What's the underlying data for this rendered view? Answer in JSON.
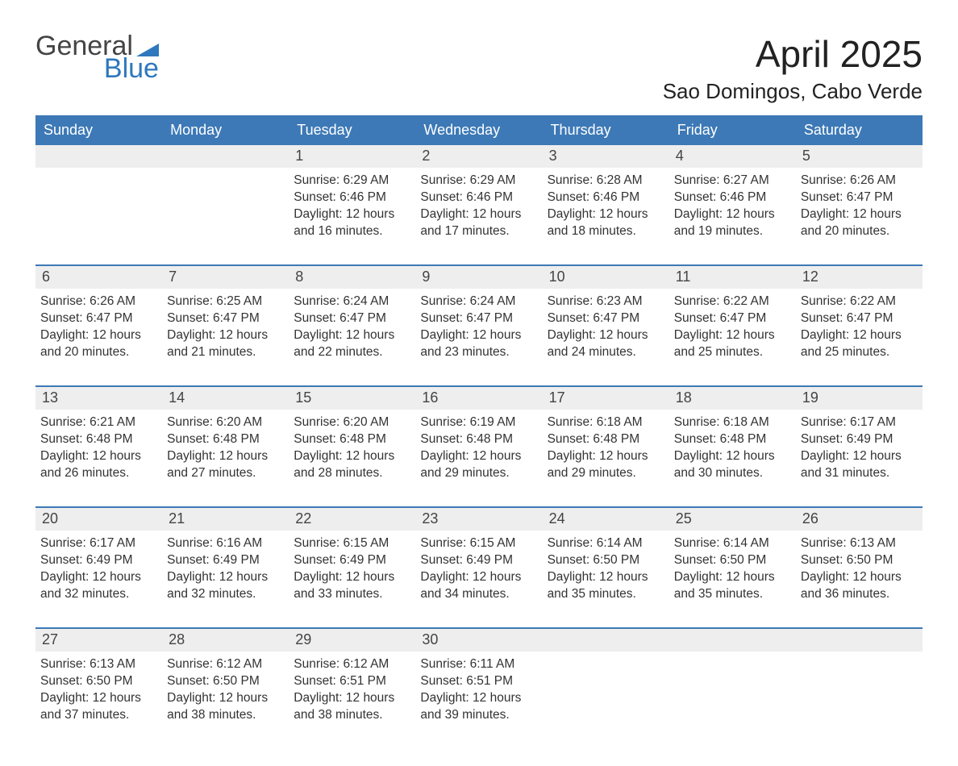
{
  "logo": {
    "text_general": "General",
    "text_blue": "Blue",
    "icon_color": "#2f78bd"
  },
  "title": "April 2025",
  "location": "Sao Domingos, Cabo Verde",
  "colors": {
    "header_bg": "#3d79b6",
    "header_text": "#ffffff",
    "daynum_bg": "#eeeeee",
    "week_border": "#3d79b6",
    "text": "#333333",
    "background": "#ffffff"
  },
  "days_of_week": [
    "Sunday",
    "Monday",
    "Tuesday",
    "Wednesday",
    "Thursday",
    "Friday",
    "Saturday"
  ],
  "weeks": [
    [
      {
        "day": "",
        "sunrise": "",
        "sunset": "",
        "daylight": ""
      },
      {
        "day": "",
        "sunrise": "",
        "sunset": "",
        "daylight": ""
      },
      {
        "day": "1",
        "sunrise": "Sunrise: 6:29 AM",
        "sunset": "Sunset: 6:46 PM",
        "daylight": "Daylight: 12 hours and 16 minutes."
      },
      {
        "day": "2",
        "sunrise": "Sunrise: 6:29 AM",
        "sunset": "Sunset: 6:46 PM",
        "daylight": "Daylight: 12 hours and 17 minutes."
      },
      {
        "day": "3",
        "sunrise": "Sunrise: 6:28 AM",
        "sunset": "Sunset: 6:46 PM",
        "daylight": "Daylight: 12 hours and 18 minutes."
      },
      {
        "day": "4",
        "sunrise": "Sunrise: 6:27 AM",
        "sunset": "Sunset: 6:46 PM",
        "daylight": "Daylight: 12 hours and 19 minutes."
      },
      {
        "day": "5",
        "sunrise": "Sunrise: 6:26 AM",
        "sunset": "Sunset: 6:47 PM",
        "daylight": "Daylight: 12 hours and 20 minutes."
      }
    ],
    [
      {
        "day": "6",
        "sunrise": "Sunrise: 6:26 AM",
        "sunset": "Sunset: 6:47 PM",
        "daylight": "Daylight: 12 hours and 20 minutes."
      },
      {
        "day": "7",
        "sunrise": "Sunrise: 6:25 AM",
        "sunset": "Sunset: 6:47 PM",
        "daylight": "Daylight: 12 hours and 21 minutes."
      },
      {
        "day": "8",
        "sunrise": "Sunrise: 6:24 AM",
        "sunset": "Sunset: 6:47 PM",
        "daylight": "Daylight: 12 hours and 22 minutes."
      },
      {
        "day": "9",
        "sunrise": "Sunrise: 6:24 AM",
        "sunset": "Sunset: 6:47 PM",
        "daylight": "Daylight: 12 hours and 23 minutes."
      },
      {
        "day": "10",
        "sunrise": "Sunrise: 6:23 AM",
        "sunset": "Sunset: 6:47 PM",
        "daylight": "Daylight: 12 hours and 24 minutes."
      },
      {
        "day": "11",
        "sunrise": "Sunrise: 6:22 AM",
        "sunset": "Sunset: 6:47 PM",
        "daylight": "Daylight: 12 hours and 25 minutes."
      },
      {
        "day": "12",
        "sunrise": "Sunrise: 6:22 AM",
        "sunset": "Sunset: 6:47 PM",
        "daylight": "Daylight: 12 hours and 25 minutes."
      }
    ],
    [
      {
        "day": "13",
        "sunrise": "Sunrise: 6:21 AM",
        "sunset": "Sunset: 6:48 PM",
        "daylight": "Daylight: 12 hours and 26 minutes."
      },
      {
        "day": "14",
        "sunrise": "Sunrise: 6:20 AM",
        "sunset": "Sunset: 6:48 PM",
        "daylight": "Daylight: 12 hours and 27 minutes."
      },
      {
        "day": "15",
        "sunrise": "Sunrise: 6:20 AM",
        "sunset": "Sunset: 6:48 PM",
        "daylight": "Daylight: 12 hours and 28 minutes."
      },
      {
        "day": "16",
        "sunrise": "Sunrise: 6:19 AM",
        "sunset": "Sunset: 6:48 PM",
        "daylight": "Daylight: 12 hours and 29 minutes."
      },
      {
        "day": "17",
        "sunrise": "Sunrise: 6:18 AM",
        "sunset": "Sunset: 6:48 PM",
        "daylight": "Daylight: 12 hours and 29 minutes."
      },
      {
        "day": "18",
        "sunrise": "Sunrise: 6:18 AM",
        "sunset": "Sunset: 6:48 PM",
        "daylight": "Daylight: 12 hours and 30 minutes."
      },
      {
        "day": "19",
        "sunrise": "Sunrise: 6:17 AM",
        "sunset": "Sunset: 6:49 PM",
        "daylight": "Daylight: 12 hours and 31 minutes."
      }
    ],
    [
      {
        "day": "20",
        "sunrise": "Sunrise: 6:17 AM",
        "sunset": "Sunset: 6:49 PM",
        "daylight": "Daylight: 12 hours and 32 minutes."
      },
      {
        "day": "21",
        "sunrise": "Sunrise: 6:16 AM",
        "sunset": "Sunset: 6:49 PM",
        "daylight": "Daylight: 12 hours and 32 minutes."
      },
      {
        "day": "22",
        "sunrise": "Sunrise: 6:15 AM",
        "sunset": "Sunset: 6:49 PM",
        "daylight": "Daylight: 12 hours and 33 minutes."
      },
      {
        "day": "23",
        "sunrise": "Sunrise: 6:15 AM",
        "sunset": "Sunset: 6:49 PM",
        "daylight": "Daylight: 12 hours and 34 minutes."
      },
      {
        "day": "24",
        "sunrise": "Sunrise: 6:14 AM",
        "sunset": "Sunset: 6:50 PM",
        "daylight": "Daylight: 12 hours and 35 minutes."
      },
      {
        "day": "25",
        "sunrise": "Sunrise: 6:14 AM",
        "sunset": "Sunset: 6:50 PM",
        "daylight": "Daylight: 12 hours and 35 minutes."
      },
      {
        "day": "26",
        "sunrise": "Sunrise: 6:13 AM",
        "sunset": "Sunset: 6:50 PM",
        "daylight": "Daylight: 12 hours and 36 minutes."
      }
    ],
    [
      {
        "day": "27",
        "sunrise": "Sunrise: 6:13 AM",
        "sunset": "Sunset: 6:50 PM",
        "daylight": "Daylight: 12 hours and 37 minutes."
      },
      {
        "day": "28",
        "sunrise": "Sunrise: 6:12 AM",
        "sunset": "Sunset: 6:50 PM",
        "daylight": "Daylight: 12 hours and 38 minutes."
      },
      {
        "day": "29",
        "sunrise": "Sunrise: 6:12 AM",
        "sunset": "Sunset: 6:51 PM",
        "daylight": "Daylight: 12 hours and 38 minutes."
      },
      {
        "day": "30",
        "sunrise": "Sunrise: 6:11 AM",
        "sunset": "Sunset: 6:51 PM",
        "daylight": "Daylight: 12 hours and 39 minutes."
      },
      {
        "day": "",
        "sunrise": "",
        "sunset": "",
        "daylight": ""
      },
      {
        "day": "",
        "sunrise": "",
        "sunset": "",
        "daylight": ""
      },
      {
        "day": "",
        "sunrise": "",
        "sunset": "",
        "daylight": ""
      }
    ]
  ]
}
